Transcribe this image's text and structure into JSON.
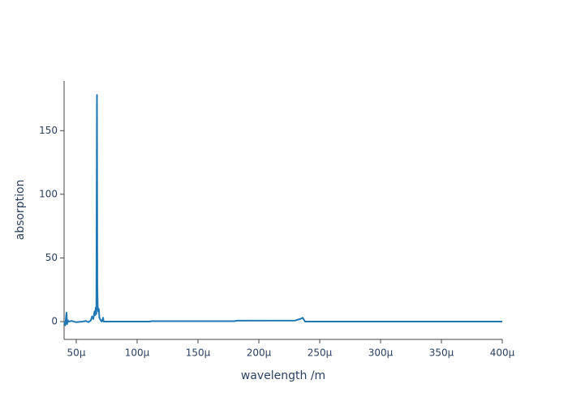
{
  "chart_data": {
    "type": "line",
    "x_label": "wavelength /m",
    "y_label": "absorption",
    "color": "#1f77b4",
    "x": [
      4e-05,
      4.1e-05,
      4.15e-05,
      4.2e-05,
      4.25e-05,
      4.3e-05,
      4.4e-05,
      4.6e-05,
      5e-05,
      5.5e-05,
      5.8e-05,
      6e-05,
      6.2e-05,
      6.3e-05,
      6.4e-05,
      6.5e-05,
      6.55e-05,
      6.6e-05,
      6.65e-05,
      6.7e-05,
      6.73e-05,
      6.76e-05,
      6.8e-05,
      6.85e-05,
      6.9e-05,
      7e-05,
      7.1e-05,
      7.2e-05,
      7.25e-05,
      8e-05,
      0.00011,
      0.000112,
      0.00018,
      0.000182,
      0.00023,
      0.000232,
      0.000234,
      0.000236,
      0.000237,
      0.000238,
      0.00025,
      0.0003,
      0.0004
    ],
    "values": [
      0,
      -3,
      3,
      7,
      -2,
      1,
      0,
      0.5,
      -0.5,
      0,
      0.5,
      -0.5,
      1,
      4,
      2,
      8,
      5,
      11,
      6,
      178,
      30,
      12,
      8,
      10,
      3,
      1,
      0,
      3,
      0,
      0,
      0,
      0.3,
      0.3,
      0.7,
      0.8,
      1.5,
      2,
      3,
      1.5,
      0,
      0,
      0,
      0
    ],
    "xlim": [
      4e-05,
      0.0004
    ],
    "xticks": [
      {
        "value": 5e-05,
        "label": "50µ"
      },
      {
        "value": 0.0001,
        "label": "100µ"
      },
      {
        "value": 0.00015,
        "label": "150µ"
      },
      {
        "value": 0.0002,
        "label": "200µ"
      },
      {
        "value": 0.00025,
        "label": "250µ"
      },
      {
        "value": 0.0003,
        "label": "300µ"
      },
      {
        "value": 0.00035,
        "label": "350µ"
      },
      {
        "value": 0.0004,
        "label": "400µ"
      }
    ],
    "ylim": [
      -14,
      189
    ],
    "yticks": [
      0,
      50,
      100,
      150
    ]
  }
}
